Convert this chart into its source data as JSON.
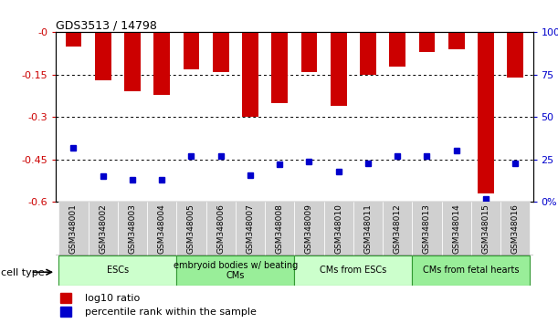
{
  "title": "GDS3513 / 14798",
  "samples": [
    "GSM348001",
    "GSM348002",
    "GSM348003",
    "GSM348004",
    "GSM348005",
    "GSM348006",
    "GSM348007",
    "GSM348008",
    "GSM348009",
    "GSM348010",
    "GSM348011",
    "GSM348012",
    "GSM348013",
    "GSM348014",
    "GSM348015",
    "GSM348016"
  ],
  "log10_ratio": [
    -0.05,
    -0.17,
    -0.21,
    -0.22,
    -0.13,
    -0.14,
    -0.3,
    -0.25,
    -0.14,
    -0.26,
    -0.15,
    -0.12,
    -0.07,
    -0.06,
    -0.57,
    -0.16
  ],
  "percentile_rank": [
    32,
    15,
    13,
    13,
    27,
    27,
    16,
    22,
    24,
    18,
    23,
    27,
    27,
    30,
    2,
    23
  ],
  "bar_color": "#cc0000",
  "dot_color": "#0000cc",
  "ylim_left": [
    -0.6,
    0.0
  ],
  "ylim_right": [
    0,
    100
  ],
  "yticks_left": [
    -0.0,
    -0.15,
    -0.3,
    -0.45,
    -0.6
  ],
  "ytick_labels_left": [
    "-0",
    "-0.15",
    "-0.3",
    "-0.45",
    "-0.6"
  ],
  "yticks_right": [
    0,
    25,
    50,
    75,
    100
  ],
  "ytick_labels_right": [
    "0%",
    "25",
    "50",
    "75",
    "100%"
  ],
  "cell_types": [
    {
      "label": "ESCs",
      "start": 0,
      "end": 3,
      "color": "#ccffcc"
    },
    {
      "label": "embryoid bodies w/ beating\nCMs",
      "start": 4,
      "end": 7,
      "color": "#99ee99"
    },
    {
      "label": "CMs from ESCs",
      "start": 8,
      "end": 11,
      "color": "#ccffcc"
    },
    {
      "label": "CMs from fetal hearts",
      "start": 12,
      "end": 15,
      "color": "#99ee99"
    }
  ],
  "legend_items": [
    {
      "color": "#cc0000",
      "label": "log10 ratio"
    },
    {
      "color": "#0000cc",
      "label": "percentile rank within the sample"
    }
  ],
  "bar_width": 0.55,
  "axis_color_left": "#cc0000",
  "axis_color_right": "#0000cc",
  "cell_type_label": "cell type"
}
